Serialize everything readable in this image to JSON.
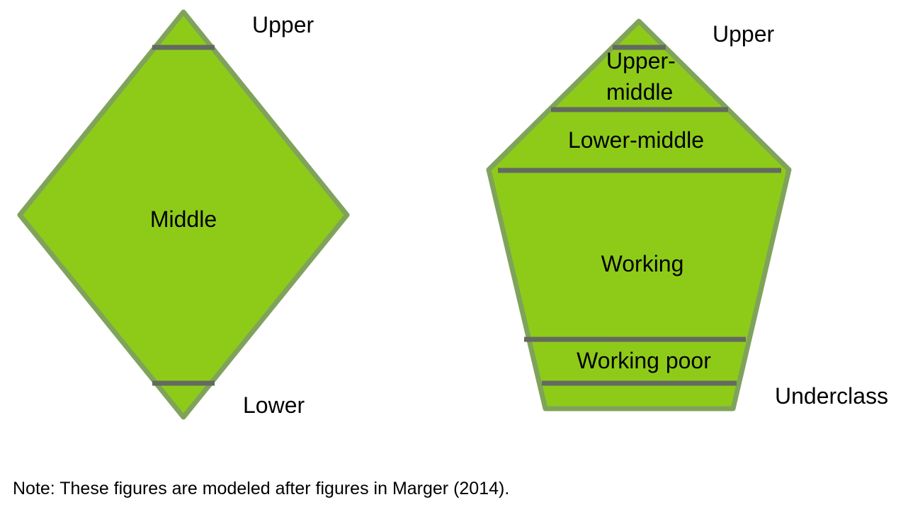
{
  "colors": {
    "fill": "#8ecb19",
    "outline": "#7fa35a",
    "divider": "#636a60",
    "text": "#000000"
  },
  "diamond": {
    "labels": {
      "upper": "Upper",
      "middle": "Middle",
      "lower": "Lower"
    }
  },
  "pentagon": {
    "labels": {
      "upper": "Upper",
      "upper_middle_line1": "Upper-",
      "upper_middle_line2": "middle",
      "lower_middle": "Lower-middle",
      "working": "Working",
      "working_poor": "Working poor",
      "underclass": "Underclass"
    }
  },
  "note": "Note: These figures are modeled after figures in Marger (2014)."
}
